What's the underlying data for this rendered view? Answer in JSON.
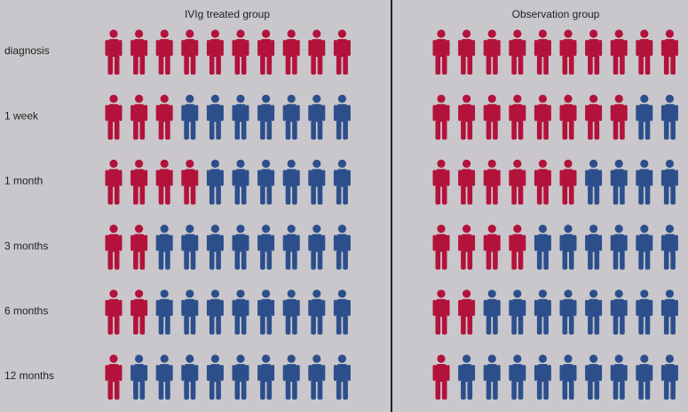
{
  "chart_data": {
    "type": "pictograph",
    "categories": [
      "diagnosis",
      "1 week",
      "1 month",
      "3 months",
      "6 months",
      "12 months"
    ],
    "total": 10,
    "filled_color": "#b3123b",
    "empty_color": "#2c4f8c",
    "series": [
      {
        "name": "IVIg treated group",
        "values": [
          10,
          3,
          4,
          2,
          2,
          1
        ]
      },
      {
        "name": "Observation group",
        "values": [
          10,
          8,
          6,
          4,
          2,
          1
        ]
      }
    ]
  }
}
